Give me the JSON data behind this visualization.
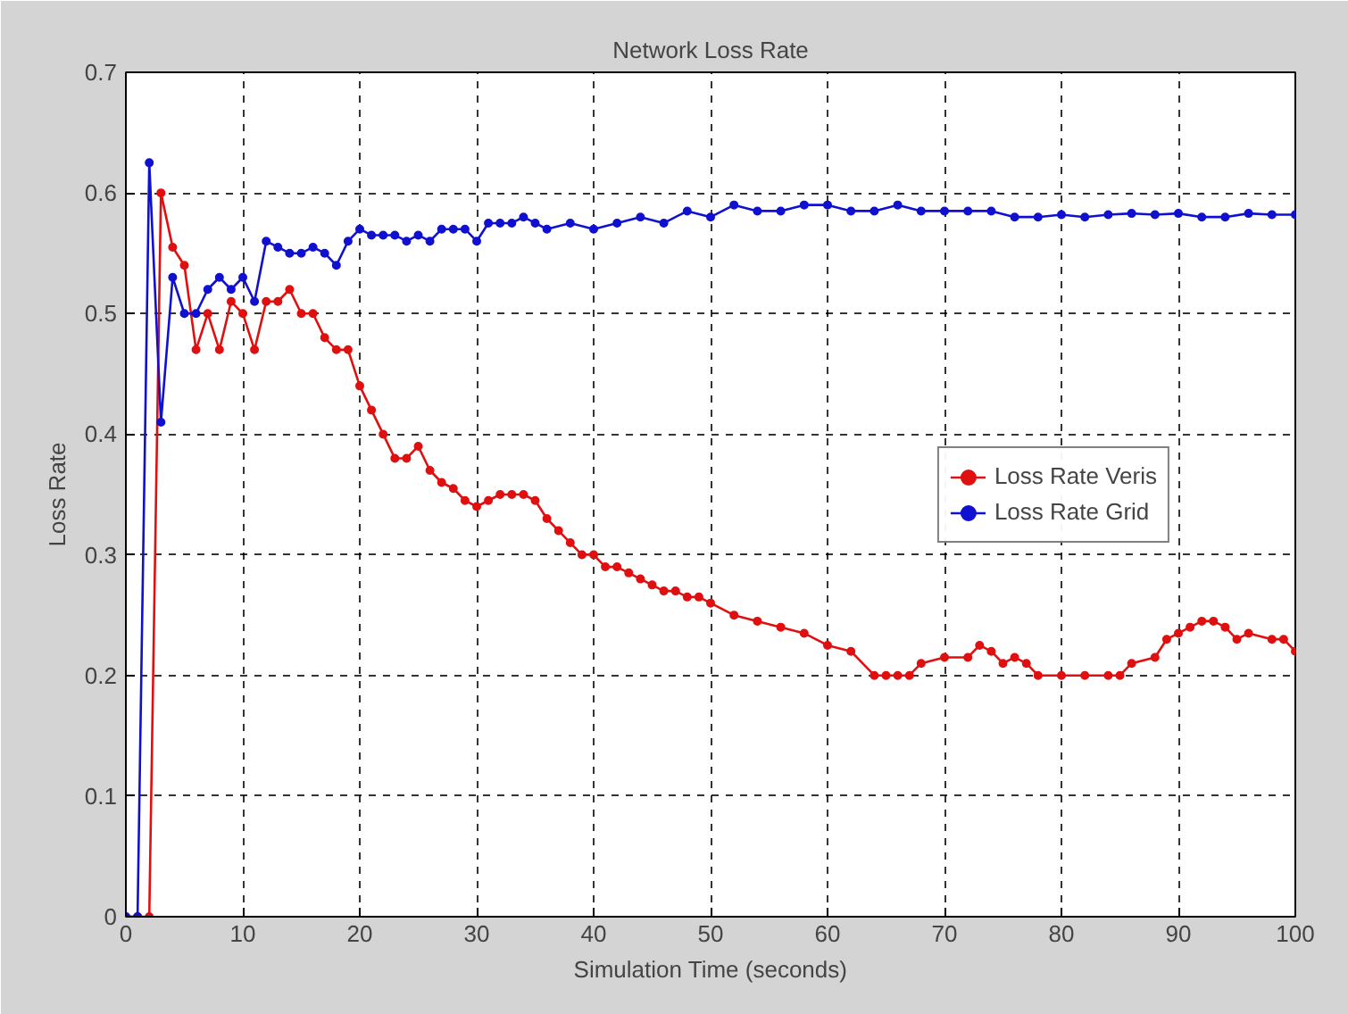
{
  "chart_data": {
    "type": "line",
    "title": "Network Loss Rate",
    "xlabel": "Simulation Time (seconds)",
    "ylabel": "Loss Rate",
    "xlim": [
      0,
      100
    ],
    "ylim": [
      0,
      0.7
    ],
    "xticks": [
      0,
      10,
      20,
      30,
      40,
      50,
      60,
      70,
      80,
      90,
      100
    ],
    "yticks": [
      0,
      0.1,
      0.2,
      0.3,
      0.4,
      0.5,
      0.6,
      0.7
    ],
    "grid": true,
    "legend": "right",
    "marker": "circle",
    "line_style": "solid",
    "series": [
      {
        "name": "Loss Rate Veris",
        "color": "#e01010",
        "x": [
          0,
          1,
          2,
          3,
          4,
          5,
          6,
          7,
          8,
          9,
          10,
          11,
          12,
          13,
          14,
          15,
          16,
          17,
          18,
          19,
          20,
          21,
          22,
          23,
          24,
          25,
          26,
          27,
          28,
          29,
          30,
          31,
          32,
          33,
          34,
          35,
          36,
          37,
          38,
          39,
          40,
          41,
          42,
          43,
          44,
          45,
          46,
          47,
          48,
          49,
          50,
          52,
          54,
          56,
          58,
          60,
          62,
          64,
          65,
          66,
          67,
          68,
          70,
          72,
          73,
          74,
          75,
          76,
          77,
          78,
          80,
          82,
          84,
          85,
          86,
          88,
          89,
          90,
          91,
          92,
          93,
          94,
          95,
          96,
          98,
          99,
          100
        ],
        "values": [
          0,
          0,
          0,
          0.6,
          0.555,
          0.54,
          0.47,
          0.5,
          0.47,
          0.51,
          0.5,
          0.47,
          0.51,
          0.51,
          0.52,
          0.5,
          0.5,
          0.48,
          0.47,
          0.47,
          0.44,
          0.42,
          0.4,
          0.38,
          0.38,
          0.39,
          0.37,
          0.36,
          0.355,
          0.345,
          0.34,
          0.345,
          0.35,
          0.35,
          0.35,
          0.345,
          0.33,
          0.32,
          0.31,
          0.3,
          0.3,
          0.29,
          0.29,
          0.285,
          0.28,
          0.275,
          0.27,
          0.27,
          0.265,
          0.265,
          0.26,
          0.25,
          0.245,
          0.24,
          0.235,
          0.225,
          0.22,
          0.2,
          0.2,
          0.2,
          0.2,
          0.21,
          0.215,
          0.215,
          0.225,
          0.22,
          0.21,
          0.215,
          0.21,
          0.2,
          0.2,
          0.2,
          0.2,
          0.2,
          0.21,
          0.215,
          0.23,
          0.235,
          0.24,
          0.245,
          0.245,
          0.24,
          0.23,
          0.235,
          0.23,
          0.23,
          0.22
        ]
      },
      {
        "name": "Loss Rate Grid",
        "color": "#1010d0",
        "x": [
          0,
          1,
          2,
          3,
          4,
          5,
          6,
          7,
          8,
          9,
          10,
          11,
          12,
          13,
          14,
          15,
          16,
          17,
          18,
          19,
          20,
          21,
          22,
          23,
          24,
          25,
          26,
          27,
          28,
          29,
          30,
          31,
          32,
          33,
          34,
          35,
          36,
          38,
          40,
          42,
          44,
          46,
          48,
          50,
          52,
          54,
          56,
          58,
          60,
          62,
          64,
          66,
          68,
          70,
          72,
          74,
          76,
          78,
          80,
          82,
          84,
          86,
          88,
          90,
          92,
          94,
          96,
          98,
          100
        ],
        "values": [
          0,
          0,
          0.625,
          0.41,
          0.53,
          0.5,
          0.5,
          0.52,
          0.53,
          0.52,
          0.53,
          0.51,
          0.56,
          0.555,
          0.55,
          0.55,
          0.555,
          0.55,
          0.54,
          0.56,
          0.57,
          0.565,
          0.565,
          0.565,
          0.56,
          0.565,
          0.56,
          0.57,
          0.57,
          0.57,
          0.56,
          0.575,
          0.575,
          0.575,
          0.58,
          0.575,
          0.57,
          0.575,
          0.57,
          0.575,
          0.58,
          0.575,
          0.585,
          0.58,
          0.59,
          0.585,
          0.585,
          0.59,
          0.59,
          0.585,
          0.585,
          0.59,
          0.585,
          0.585,
          0.585,
          0.585,
          0.58,
          0.58,
          0.582,
          0.58,
          0.582,
          0.583,
          0.582,
          0.583,
          0.58,
          0.58,
          0.583,
          0.582,
          0.582
        ]
      }
    ]
  }
}
